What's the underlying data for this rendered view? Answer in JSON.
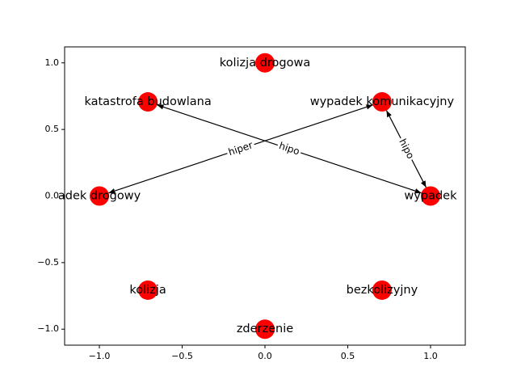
{
  "chart_data": {
    "type": "network",
    "xlim": [
      -1.21,
      1.21
    ],
    "ylim": [
      -1.12,
      1.12
    ],
    "xticks": [
      {
        "value": -1.0,
        "label": "−1.0"
      },
      {
        "value": -0.5,
        "label": "−0.5"
      },
      {
        "value": 0.0,
        "label": "0.0"
      },
      {
        "value": 0.5,
        "label": "0.5"
      },
      {
        "value": 1.0,
        "label": "1.0"
      }
    ],
    "yticks": [
      {
        "value": -1.0,
        "label": "−1.0"
      },
      {
        "value": -0.5,
        "label": "−0.5"
      },
      {
        "value": 0.0,
        "label": "0.0"
      },
      {
        "value": 0.5,
        "label": "0.5"
      },
      {
        "value": 1.0,
        "label": "1.0"
      }
    ],
    "node_color": "#ff0000",
    "nodes": [
      {
        "label": "kolizja drogowa",
        "x": 0.0,
        "y": 1.0
      },
      {
        "label": "katastrofa budowlana",
        "x": -0.707,
        "y": 0.707
      },
      {
        "label": "adek drogowy",
        "x": -1.0,
        "y": 0.0
      },
      {
        "label": "kolizja",
        "x": -0.707,
        "y": -0.707
      },
      {
        "label": "zderzenie",
        "x": 0.0,
        "y": -1.0
      },
      {
        "label": "bezkolizyjny",
        "x": 0.707,
        "y": -0.707
      },
      {
        "label": "wypadek",
        "x": 1.0,
        "y": 0.0
      },
      {
        "label": "wypadek komunikacyjny",
        "x": 0.707,
        "y": 0.707
      }
    ],
    "edges": [
      {
        "from": "katastrofa budowlana",
        "to": "wypadek",
        "label": "hipo"
      },
      {
        "from": "adek drogowy",
        "to": "wypadek komunikacyjny",
        "label": "hiper"
      },
      {
        "from": "wypadek komunikacyjny",
        "to": "wypadek",
        "label": "hipo"
      }
    ]
  }
}
